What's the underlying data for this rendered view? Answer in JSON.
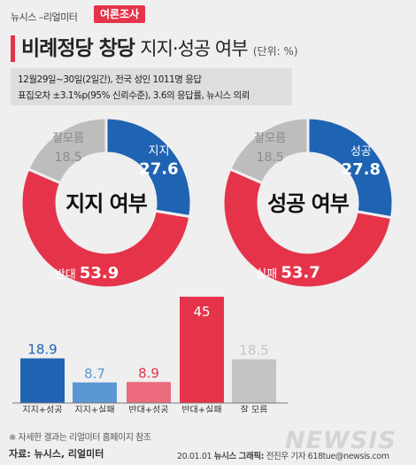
{
  "header": {
    "source_label": "뉴시스 –리얼미터",
    "tag": "여론조사",
    "title_main": "비례정당 창당",
    "title_sub": "지지·성공 여부",
    "unit": "(단위: %)"
  },
  "info": {
    "line1": "12월29일~30일(2일간), 전국 성인 1011명 응답",
    "line2": "표집오차 ±3.1%p(95% 신뢰수준), 3.6의 응답률, 뉴시스 의뢰"
  },
  "colors": {
    "blue": "#1f63b3",
    "red": "#e5344a",
    "gray": "#bdbdbd",
    "light_blue": "#5b97d4",
    "light_red": "#ec6b7c",
    "light_gray": "#c4c4c4"
  },
  "chart_data": [
    {
      "type": "pie",
      "center_label": "지지 여부",
      "slices": [
        {
          "label": "지지",
          "value": 27.6,
          "color": "#1f63b3"
        },
        {
          "label": "반대",
          "value": 53.9,
          "color": "#e5344a"
        },
        {
          "label": "잘모름",
          "value": 18.5,
          "color": "#bdbdbd"
        }
      ]
    },
    {
      "type": "pie",
      "center_label": "성공 여부",
      "slices": [
        {
          "label": "성공",
          "value": 27.8,
          "color": "#1f63b3"
        },
        {
          "label": "실패",
          "value": 53.7,
          "color": "#e5344a"
        },
        {
          "label": "잘모름",
          "value": 18.5,
          "color": "#bdbdbd"
        }
      ]
    },
    {
      "type": "bar",
      "categories": [
        "지지+성공",
        "지지+실패",
        "반대+성공",
        "반대+실패",
        "잘 모름"
      ],
      "values": [
        18.9,
        8.7,
        8.9,
        45,
        18.5
      ],
      "colors": [
        "#1f63b3",
        "#5b97d4",
        "#ec6b7c",
        "#e5344a",
        "#c4c4c4"
      ],
      "value_colors": [
        "#1f63b3",
        "#5b97d4",
        "#e5344a",
        "#ffffff",
        "#c4c4c4"
      ]
    }
  ],
  "footer": {
    "footnote": "※ 자세한 결과는 리얼미터 홈페이지 참조",
    "source": "자료: 뉴시스, 리얼미터",
    "date": "20.01.01",
    "graphics_label": "뉴시스 그래픽:",
    "credit": "전진우 기자 618tue@newsis.com",
    "logo": "NEWSIS"
  }
}
